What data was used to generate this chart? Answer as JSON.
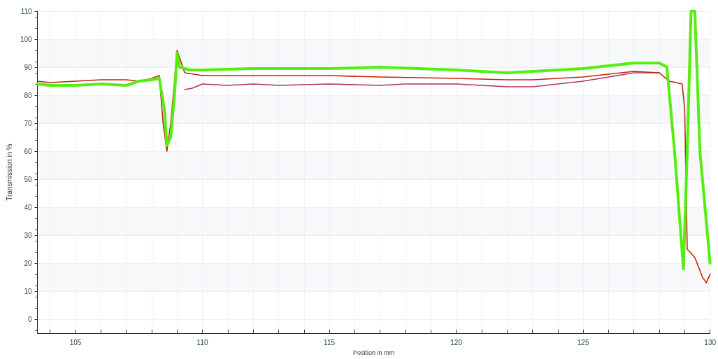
{
  "chart_data": {
    "type": "line",
    "xlabel": "Position in mm",
    "ylabel": "Transmission in %",
    "xlim": [
      103.5,
      130
    ],
    "ylim": [
      -5,
      110
    ],
    "xticks": [
      {
        "value": 104,
        "label": null
      },
      105,
      {
        "value": 106,
        "label": null
      },
      {
        "value": 107,
        "label": null
      },
      {
        "value": 108,
        "label": null
      },
      {
        "value": 109,
        "label": null
      },
      110,
      {
        "value": 111,
        "label": null
      },
      {
        "value": 112,
        "label": null
      },
      {
        "value": 113,
        "label": null
      },
      {
        "value": 114,
        "label": null
      },
      115,
      {
        "value": 116,
        "label": null
      },
      {
        "value": 117,
        "label": null
      },
      {
        "value": 118,
        "label": null
      },
      {
        "value": 119,
        "label": null
      },
      120,
      {
        "value": 121,
        "label": null
      },
      {
        "value": 122,
        "label": null
      },
      {
        "value": 123,
        "label": null
      },
      {
        "value": 124,
        "label": null
      },
      125,
      {
        "value": 126,
        "label": null
      },
      {
        "value": 127,
        "label": null
      },
      {
        "value": 128,
        "label": null
      },
      {
        "value": 129,
        "label": null
      },
      130
    ],
    "yticks": [
      0,
      10,
      20,
      30,
      40,
      50,
      60,
      70,
      80,
      90,
      100,
      110
    ],
    "grid": true,
    "marker": "none",
    "line_style": "solid",
    "series": [
      {
        "color": "#b0306a",
        "x": [
          109.3,
          109.6,
          110,
          111,
          112,
          113,
          115,
          117,
          118,
          120,
          121,
          122,
          123,
          124,
          125,
          126,
          127,
          128
        ],
        "values": [
          82,
          82.5,
          84,
          83.5,
          84,
          83.5,
          84,
          83.5,
          84,
          84,
          83.5,
          83,
          83,
          84,
          85,
          86.5,
          88,
          88
        ]
      },
      {
        "color": "#c8200f",
        "x": [
          103.5,
          104,
          105,
          106,
          107,
          107.5,
          108,
          108.3,
          108.45,
          108.6,
          108.75,
          108.95,
          109.0,
          109.3,
          110,
          112,
          115,
          117,
          120,
          122,
          123,
          125,
          127,
          128,
          128.4,
          128.9,
          129.0,
          129.1,
          129.4,
          129.7,
          129.85,
          130
        ],
        "values": [
          85,
          84.5,
          85,
          85.5,
          85.5,
          85,
          86,
          87,
          70,
          60,
          70,
          90,
          96,
          88,
          87,
          87,
          87,
          86.5,
          86,
          85.5,
          85.5,
          86.5,
          88.5,
          88,
          85,
          84,
          75,
          25,
          22,
          15,
          13,
          16
        ]
      },
      {
        "color": "#55ee11",
        "x": [
          103.5,
          104,
          105,
          106,
          107,
          107.5,
          108,
          108.3,
          108.5,
          108.6,
          108.75,
          108.9,
          109.0,
          109.1,
          109.5,
          110,
          112,
          115,
          117,
          120,
          121,
          122,
          123,
          125,
          127,
          128,
          128.3,
          128.6,
          128.95,
          129.1,
          129.25,
          129.4,
          129.6,
          130
        ],
        "values": [
          84,
          83.5,
          83.5,
          84,
          83.5,
          85,
          85.5,
          86,
          75,
          62,
          65,
          80,
          95,
          90,
          89,
          89,
          89.5,
          89.5,
          90,
          89,
          88.5,
          88,
          88.5,
          89.5,
          91.5,
          91.5,
          90,
          60,
          18,
          60,
          110,
          110,
          60,
          20
        ]
      }
    ]
  }
}
